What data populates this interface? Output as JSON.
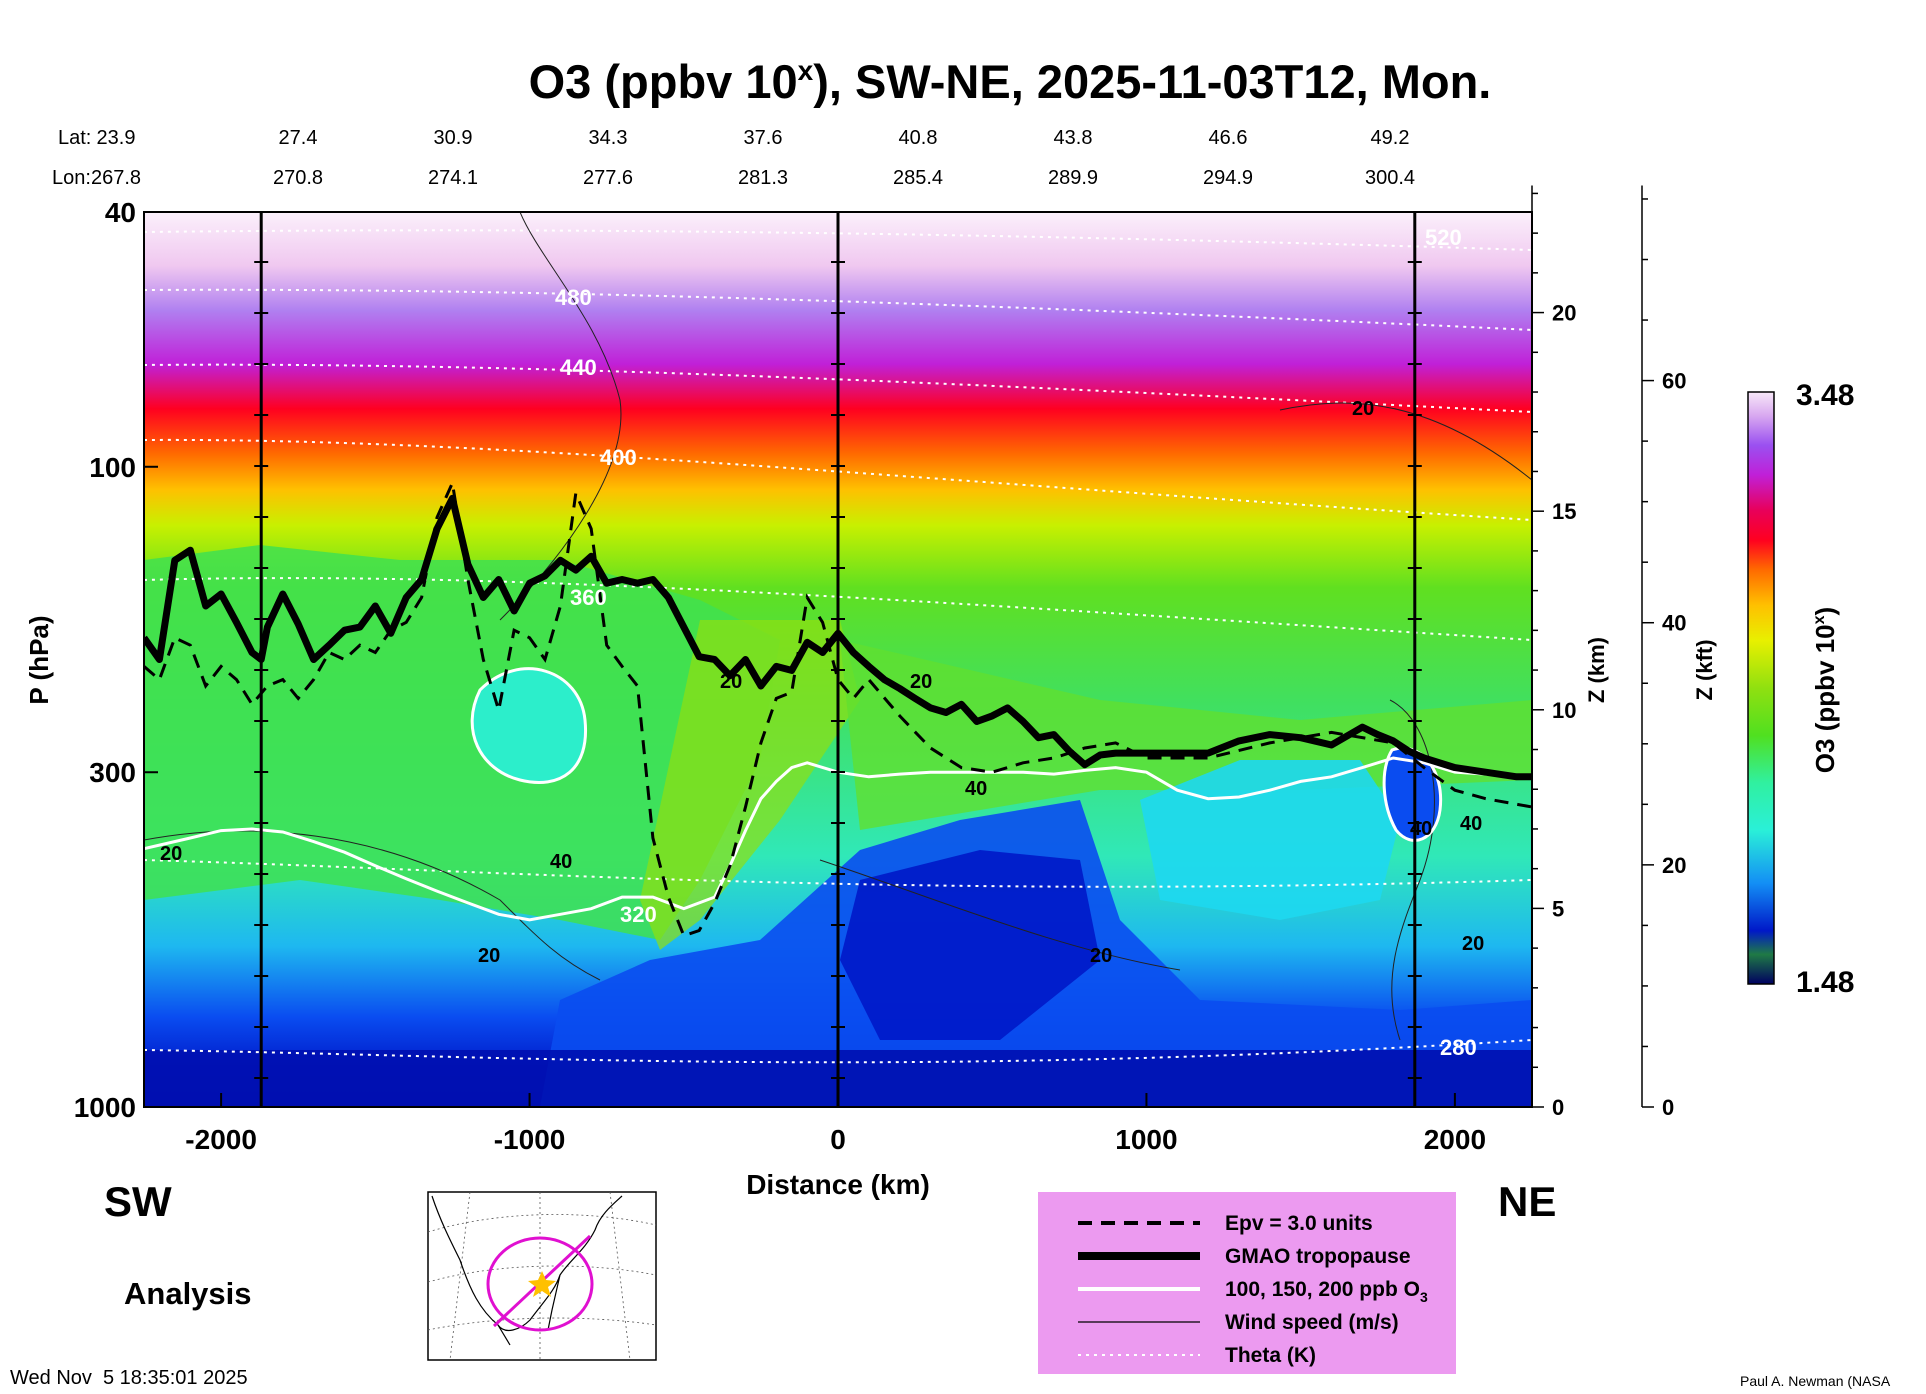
{
  "chart_data": {
    "type": "contour-cross-section",
    "title": {
      "main": "O3 (ppbv 10",
      "superscript": "x",
      "rest": "), SW-NE, 2025-11-03T12, Mon."
    },
    "lat_label": "Lat:",
    "lon_label": "Lon:",
    "lat": [
      "23.9",
      "27.4",
      "30.9",
      "34.3",
      "37.6",
      "40.8",
      "43.8",
      "46.6",
      "49.2"
    ],
    "lon": [
      "267.8",
      "270.8",
      "274.1",
      "277.6",
      "281.3",
      "285.4",
      "289.9",
      "294.9",
      "300.4"
    ],
    "xlabel": "Distance (km)",
    "ylabel": "P (hPa)",
    "zkm_label": "Z (km)",
    "zkft_label": "Z (kft)",
    "xlim": [
      -2250,
      2250
    ],
    "ylim": [
      1000,
      40
    ],
    "x_ticks": [
      {
        "v": -2000,
        "label": "-2000"
      },
      {
        "v": -1000,
        "label": "-1000"
      },
      {
        "v": 0,
        "label": "0"
      },
      {
        "v": 1000,
        "label": "1000"
      },
      {
        "v": 2000,
        "label": "2000"
      }
    ],
    "y_ticks": [
      {
        "p": 40,
        "label": "40"
      },
      {
        "p": 100,
        "label": "100"
      },
      {
        "p": 300,
        "label": "300"
      },
      {
        "p": 1000,
        "label": "1000"
      }
    ],
    "zkm_ticks": [
      {
        "v": 0,
        "label": "0"
      },
      {
        "v": 5,
        "label": "5"
      },
      {
        "v": 10,
        "label": "10"
      },
      {
        "v": 15,
        "label": "15"
      },
      {
        "v": 20,
        "label": "20"
      }
    ],
    "zkft_ticks": [
      {
        "v": 0,
        "label": "0"
      },
      {
        "v": 20,
        "label": "20"
      },
      {
        "v": 40,
        "label": "40"
      },
      {
        "v": 60,
        "label": "60"
      }
    ],
    "vertical_lines_km": [
      -1870,
      0,
      1870
    ],
    "colorbar": {
      "label": "O3 (ppbv 10",
      "label_sup": "x",
      "label_end": ")",
      "max": "3.48",
      "min": "1.48",
      "colors": [
        "#000060",
        "#0a3d1a",
        "#1f7a45",
        "#0018c8",
        "#0a4cf0",
        "#138ef5",
        "#20d0f0",
        "#2af0d8",
        "#30f0a0",
        "#38e860",
        "#50e020",
        "#90e010",
        "#c8f000",
        "#f0f000",
        "#ffc000",
        "#ff8a00",
        "#ff4a00",
        "#ff0020",
        "#e8005a",
        "#c020d8",
        "#9a50f0",
        "#b080f0",
        "#d8a8f0",
        "#f0c8f0",
        "#f8e8f8"
      ]
    },
    "tropopause": {
      "km": [
        -2250,
        -2200,
        -2150,
        -2100,
        -2050,
        -2000,
        -1950,
        -1900,
        -1870,
        -1850,
        -1800,
        -1750,
        -1700,
        -1650,
        -1600,
        -1550,
        -1500,
        -1450,
        -1400,
        -1350,
        -1300,
        -1250,
        -1200,
        -1150,
        -1100,
        -1050,
        -1000,
        -950,
        -900,
        -850,
        -800,
        -750,
        -700,
        -650,
        -600,
        -550,
        -500,
        -450,
        -400,
        -350,
        -300,
        -250,
        -200,
        -150,
        -100,
        -50,
        0,
        50,
        100,
        150,
        200,
        250,
        300,
        350,
        400,
        450,
        500,
        550,
        600,
        650,
        700,
        750,
        800,
        850,
        900,
        950,
        1000,
        1100,
        1200,
        1300,
        1400,
        1500,
        1600,
        1700,
        1750,
        1800,
        1850,
        1900,
        2000,
        2100,
        2200,
        2250
      ],
      "hPa": [
        185,
        200,
        140,
        135,
        165,
        158,
        175,
        195,
        200,
        178,
        158,
        176,
        200,
        190,
        180,
        178,
        165,
        182,
        160,
        150,
        125,
        112,
        142,
        160,
        150,
        168,
        152,
        148,
        140,
        145,
        138,
        152,
        150,
        152,
        150,
        160,
        178,
        198,
        200,
        212,
        200,
        220,
        205,
        208,
        188,
        195,
        182,
        195,
        205,
        215,
        222,
        230,
        238,
        242,
        235,
        250,
        245,
        238,
        250,
        265,
        262,
        278,
        292,
        282,
        280,
        280,
        280,
        280,
        280,
        268,
        262,
        265,
        272,
        255,
        262,
        268,
        278,
        285,
        295,
        300,
        305,
        305
      ]
    },
    "epv_contour": {
      "label": "Epv = 3.0 units",
      "km": [
        -2250,
        -2200,
        -2150,
        -2100,
        -2050,
        -2000,
        -1950,
        -1900,
        -1850,
        -1800,
        -1750,
        -1700,
        -1650,
        -1600,
        -1550,
        -1500,
        -1450,
        -1400,
        -1350,
        -1300,
        -1250,
        -1200,
        -1150,
        -1100,
        -1050,
        -1000,
        -950,
        -900,
        -850,
        -800,
        -750,
        -700,
        -650,
        -600,
        -550,
        -500,
        -450,
        -400,
        -350,
        -300,
        -250,
        -200,
        -150,
        -100,
        -50,
        0,
        50,
        100,
        200,
        300,
        400,
        500,
        600,
        700,
        800,
        900,
        1000,
        1200,
        1400,
        1600,
        1800,
        1900,
        2000,
        2100,
        2250
      ],
      "hPa": [
        205,
        215,
        185,
        190,
        220,
        205,
        215,
        235,
        220,
        215,
        230,
        215,
        195,
        200,
        190,
        195,
        180,
        175,
        160,
        120,
        106,
        150,
        200,
        240,
        180,
        185,
        200,
        165,
        110,
        125,
        190,
        205,
        220,
        380,
        470,
        540,
        530,
        480,
        420,
        340,
        270,
        230,
        225,
        160,
        175,
        215,
        230,
        215,
        245,
        275,
        295,
        300,
        290,
        285,
        275,
        270,
        285,
        285,
        270,
        260,
        270,
        295,
        320,
        330,
        340
      ]
    },
    "o3_100ppb_contour": {
      "km": [
        -2250,
        -2100,
        -2000,
        -1900,
        -1800,
        -1700,
        -1600,
        -1500,
        -1400,
        -1300,
        -1200,
        -1100,
        -1000,
        -900,
        -800,
        -700,
        -600,
        -500,
        -400,
        -350,
        -300,
        -250,
        -200,
        -150,
        -100,
        0,
        100,
        200,
        300,
        400,
        500,
        600,
        700,
        800,
        900,
        1000,
        1100,
        1200,
        1300,
        1400,
        1500,
        1600,
        1700,
        1800,
        1900,
        2000,
        2100,
        2200,
        2250
      ],
      "hPa": [
        395,
        380,
        370,
        368,
        372,
        385,
        400,
        420,
        440,
        460,
        480,
        500,
        510,
        500,
        490,
        470,
        470,
        490,
        470,
        420,
        370,
        330,
        310,
        295,
        290,
        300,
        305,
        302,
        300,
        300,
        300,
        300,
        302,
        298,
        295,
        300,
        320,
        330,
        328,
        320,
        310,
        305,
        295,
        285,
        290,
        300,
        302,
        305,
        305
      ]
    },
    "wind_labels": [
      "20",
      "20",
      "20",
      "20",
      "40",
      "40",
      "40",
      "20",
      "20",
      "20",
      "40"
    ],
    "theta_labels": [
      "280",
      "320",
      "360",
      "400",
      "440",
      "480",
      "520"
    ],
    "footer": {
      "sw": "SW",
      "ne": "NE",
      "analysis": "Analysis",
      "timestamp": "Wed Nov  5 18:35:01 2025",
      "credit": "Paul A. Newman (NASA"
    },
    "legend": {
      "items": [
        {
          "style": "dashed",
          "label": "Epv = 3.0 units"
        },
        {
          "style": "thick",
          "label": "GMAO tropopause"
        },
        {
          "style": "white",
          "label": "100, 150, 200 ppb O",
          "sub": "3"
        },
        {
          "style": "thin",
          "label": "Wind speed (m/s)"
        },
        {
          "style": "dotted",
          "label": "Theta (K)"
        }
      ]
    }
  }
}
